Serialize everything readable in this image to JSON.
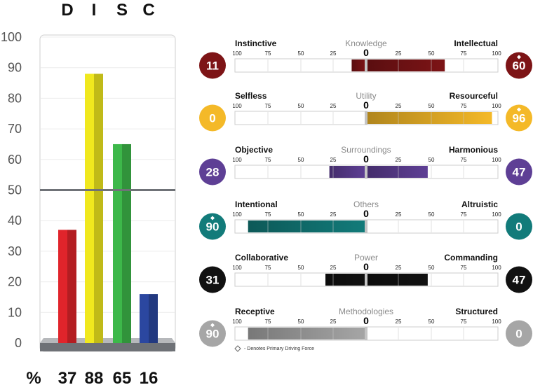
{
  "chart_data": [
    {
      "type": "bar",
      "title": "",
      "categories": [
        "D",
        "I",
        "S",
        "C"
      ],
      "values": [
        37,
        88,
        65,
        16
      ],
      "colors": [
        "#e0242b",
        "#f0e81e",
        "#3db84a",
        "#2b47a0"
      ],
      "percent_label": "%",
      "ylim": [
        0,
        100
      ],
      "yticks": [
        0,
        10,
        20,
        30,
        40,
        50,
        60,
        70,
        80,
        90,
        100
      ],
      "reference_line": 50,
      "grid": true
    },
    {
      "type": "bar",
      "subtype": "diverging",
      "tick_labels": [
        "100",
        "75",
        "50",
        "25",
        "0",
        "25",
        "50",
        "75",
        "100"
      ],
      "center_tick": "0",
      "xlim": [
        -100,
        100
      ],
      "legend_note": "- Denotes Primary Driving Force",
      "rows": [
        {
          "name": "Knowledge",
          "left_label": "Instinctive",
          "right_label": "Intellectual",
          "left_value": 11,
          "right_value": 60,
          "color": "#7d1416",
          "primary_side": "right"
        },
        {
          "name": "Utility",
          "left_label": "Selfless",
          "right_label": "Resourceful",
          "left_value": 0,
          "right_value": 96,
          "color": "#f4b928",
          "primary_side": "right"
        },
        {
          "name": "Surroundings",
          "left_label": "Objective",
          "right_label": "Harmonious",
          "left_value": 28,
          "right_value": 47,
          "color": "#5e3f95",
          "primary_side": ""
        },
        {
          "name": "Others",
          "left_label": "Intentional",
          "right_label": "Altruistic",
          "left_value": 90,
          "right_value": 0,
          "color": "#127b7a",
          "primary_side": "left"
        },
        {
          "name": "Power",
          "left_label": "Collaborative",
          "right_label": "Commanding",
          "left_value": 31,
          "right_value": 47,
          "color": "#111111",
          "primary_side": ""
        },
        {
          "name": "Methodologies",
          "left_label": "Receptive",
          "right_label": "Structured",
          "left_value": 90,
          "right_value": 0,
          "color": "#a6a6a6",
          "primary_side": "left"
        }
      ]
    }
  ]
}
